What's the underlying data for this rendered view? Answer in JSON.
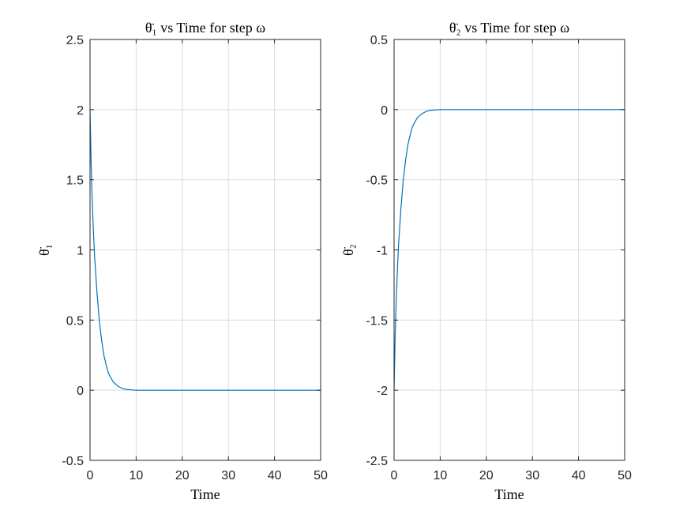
{
  "chart_data": [
    {
      "type": "line",
      "title": "θ̈₁ vs Time for step ω",
      "xlabel": "Time",
      "ylabel": "θ̈₁",
      "xlim": [
        0,
        50
      ],
      "ylim": [
        -0.5,
        2.5
      ],
      "x_ticks": [
        "0",
        "10",
        "20",
        "30",
        "40",
        "50"
      ],
      "y_ticks": [
        "-0.5",
        "0",
        "0.5",
        "1",
        "1.5",
        "2",
        "2.5"
      ],
      "grid": true,
      "line_color": "#0072BD",
      "series": [
        {
          "x": [
            0,
            0.25,
            0.5,
            0.75,
            1,
            1.5,
            2,
            2.5,
            3,
            3.5,
            4,
            5,
            6,
            7,
            8,
            9,
            10,
            12,
            15,
            20,
            25,
            30,
            35,
            40,
            45,
            50
          ],
          "values": [
            2.0,
            1.6,
            1.33,
            1.12,
            0.95,
            0.7,
            0.5,
            0.36,
            0.25,
            0.18,
            0.12,
            0.06,
            0.03,
            0.012,
            0.005,
            0.002,
            0.0,
            0.0,
            0.0,
            0.0,
            0.0,
            0.0,
            0.0,
            0.0,
            0.0,
            0.0
          ]
        }
      ]
    },
    {
      "type": "line",
      "title": "θ̈₂ vs Time for step ω",
      "xlabel": "Time",
      "ylabel": "θ̈₂",
      "xlim": [
        0,
        50
      ],
      "ylim": [
        -2.5,
        0.5
      ],
      "x_ticks": [
        "0",
        "10",
        "20",
        "30",
        "40",
        "50"
      ],
      "y_ticks": [
        "-2.5",
        "-2",
        "-1.5",
        "-1",
        "-0.5",
        "0",
        "0.5"
      ],
      "grid": true,
      "line_color": "#0072BD",
      "series": [
        {
          "x": [
            0,
            0.25,
            0.5,
            0.75,
            1,
            1.5,
            2,
            2.5,
            3,
            3.5,
            4,
            5,
            6,
            7,
            8,
            9,
            10,
            12,
            15,
            20,
            25,
            30,
            35,
            40,
            45,
            50
          ],
          "values": [
            -2.0,
            -1.6,
            -1.33,
            -1.12,
            -0.95,
            -0.7,
            -0.5,
            -0.36,
            -0.25,
            -0.18,
            -0.12,
            -0.06,
            -0.03,
            -0.012,
            -0.005,
            -0.002,
            0.0,
            0.0,
            0.0,
            0.0,
            0.0,
            0.0,
            0.0,
            0.0,
            0.0,
            0.0
          ]
        }
      ]
    }
  ]
}
